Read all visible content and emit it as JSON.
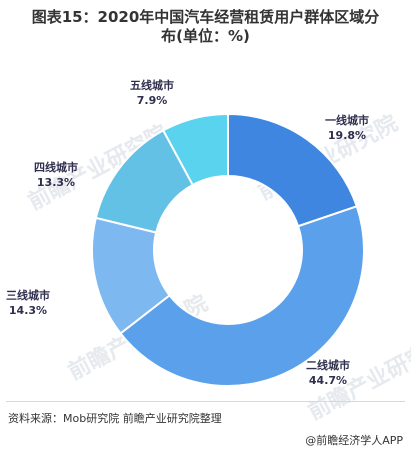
{
  "title_line1": "图表15：2020年中国汽车经营租赁用户群体区域分",
  "title_line2": "布(单位：%)",
  "chart_data": {
    "type": "pie",
    "variant": "donut",
    "title": "图表15：2020年中国汽车经营租赁用户群体区域分布(单位：%)",
    "categories": [
      "一线城市",
      "二线城市",
      "三线城市",
      "四线城市",
      "五线城市"
    ],
    "values": [
      19.8,
      44.7,
      14.3,
      13.3,
      7.9
    ],
    "value_labels": [
      "19.8%",
      "44.7%",
      "14.3%",
      "13.3%",
      "7.9%"
    ],
    "colors": [
      "#3f86e0",
      "#5aa0ea",
      "#7db9f0",
      "#63c1e6",
      "#5ad3ee"
    ],
    "legend": "none"
  },
  "watermark": "前瞻产业研究院",
  "source": "资料来源：Mob研究院 前瞻产业研究院整理",
  "credit": "@前瞻经济学人APP"
}
